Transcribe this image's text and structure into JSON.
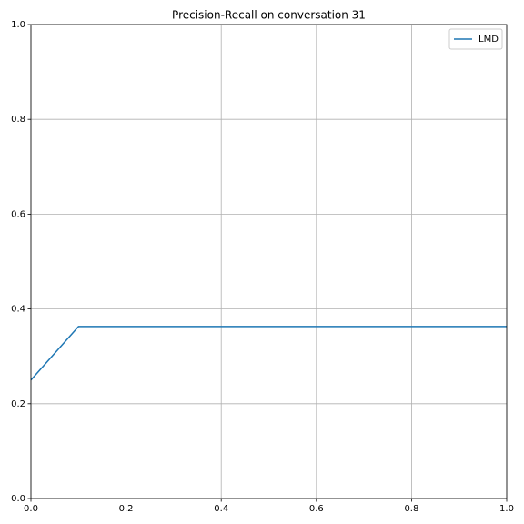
{
  "chart_data": {
    "type": "line",
    "title": "Precision-Recall on conversation 31",
    "x": [
      0,
      0.1,
      1.0
    ],
    "series": [
      {
        "name": "LMD",
        "color": "#1f77b4",
        "values": [
          0.25,
          0.363,
          0.363
        ]
      }
    ],
    "xlim": [
      0,
      1
    ],
    "ylim": [
      0,
      1
    ],
    "xticks": [
      {
        "value": 0,
        "label": "0.0"
      },
      0.2,
      0.4,
      0.6,
      0.8,
      {
        "value": 1,
        "label": "1.0"
      }
    ],
    "yticks": [
      {
        "value": 0,
        "label": "0.0"
      },
      0.2,
      0.4,
      0.6,
      0.8,
      {
        "value": 1,
        "label": "1.0"
      }
    ],
    "grid": true,
    "legend": "upper right"
  }
}
